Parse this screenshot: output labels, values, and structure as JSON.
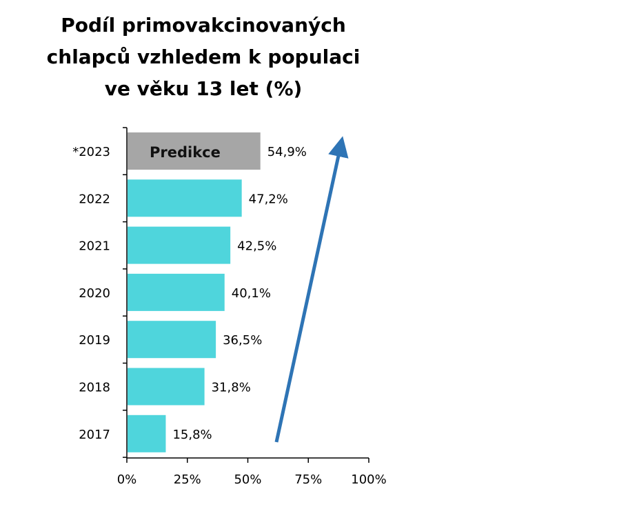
{
  "chart_data": {
    "type": "bar",
    "orientation": "horizontal",
    "title_lines": [
      "Podíl primovakcinovaných",
      "chlapců vzhledem k populaci",
      "ve věku 13 let (%)"
    ],
    "categories": [
      "*2023",
      "2022",
      "2021",
      "2020",
      "2019",
      "2018",
      "2017"
    ],
    "values": [
      54.9,
      47.2,
      42.5,
      40.1,
      36.5,
      31.8,
      15.8
    ],
    "value_labels": [
      "54,9%",
      "47,2%",
      "42,5%",
      "40,1%",
      "36,5%",
      "31,8%",
      "15,8%"
    ],
    "highlight": {
      "index": 0,
      "label": "Predikce",
      "color": "#a6a6a6"
    },
    "bar_color": "#4fd5dc",
    "arrow_color": "#2e74b5",
    "xlim": [
      0,
      100
    ],
    "xticks": [
      0,
      25,
      50,
      75,
      100
    ],
    "xtick_labels": [
      "0%",
      "25%",
      "50%",
      "75%",
      "100%"
    ],
    "grid": false,
    "legend": "none"
  }
}
